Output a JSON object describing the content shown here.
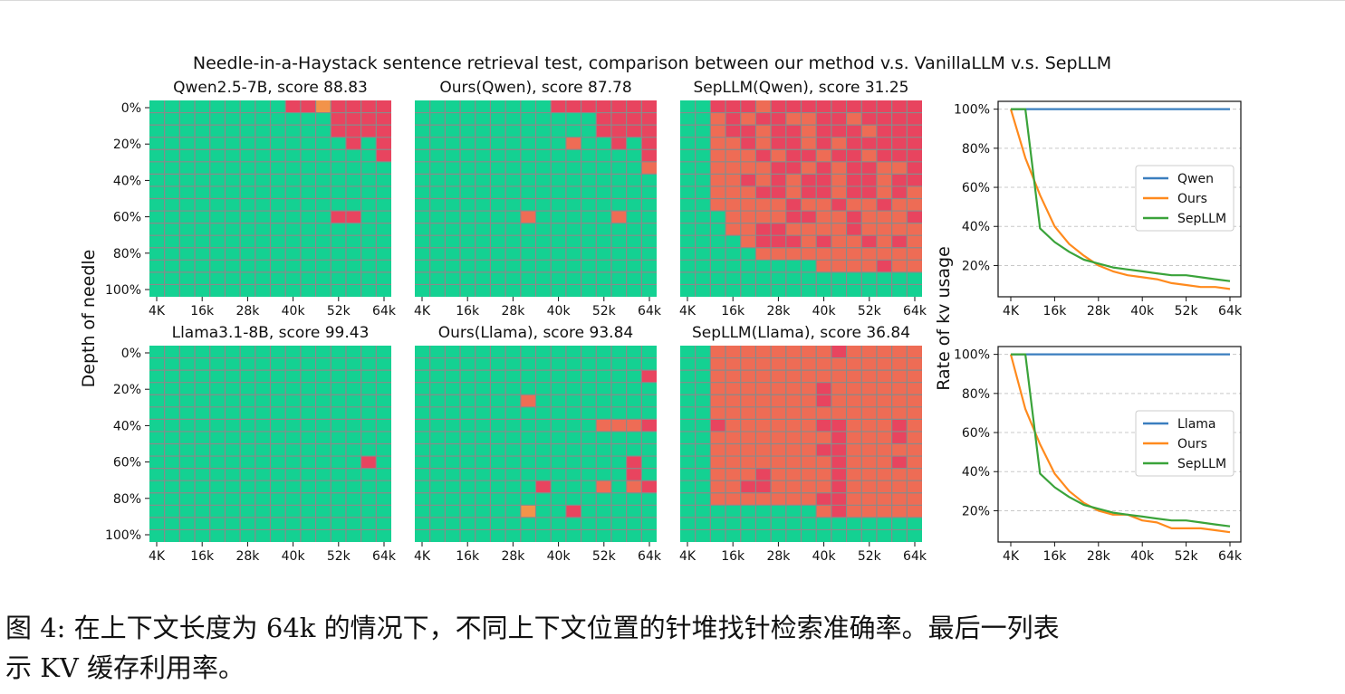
{
  "figure": {
    "suptitle": "Needle-in-a-Haystack sentence retrieval test, comparison between our method v.s. VanillaLLM v.s. SepLLM",
    "ylabel_left": "Depth of needle",
    "ylabel_right": "Rate of kv usage"
  },
  "caption": {
    "line1": "图 4: 在上下文长度为 64k 的情况下，不同上下文位置的针堆找针检索准确率。最后一列表",
    "line2": "示 KV 缓存利用率。"
  },
  "colors": {
    "green": "#14d192",
    "red": "#e8445f",
    "salmon": "#ee6c55",
    "orange": "#f2934a",
    "grid_line": "#8a8a8a",
    "line_base": "#3a7ebf",
    "line_ours": "#ff8a1d",
    "line_sepllm": "#3aa33a"
  },
  "chart_data": [
    {
      "type": "heatmap",
      "title": "Qwen2.5-7B, score 88.83",
      "x_ticklabels": [
        "4K",
        "16k",
        "28k",
        "40k",
        "52k",
        "64k"
      ],
      "y_ticklabels": [
        "0%",
        "20%",
        "40%",
        "60%",
        "80%",
        "100%"
      ],
      "legend": {
        "G": "green",
        "R": "red",
        "S": "salmon",
        "O": "orange"
      },
      "grid": [
        "GGGGGGGGGRRORRRR",
        "GGGGGGGGGGGGRRRR",
        "GGGGGGGGGGGGRRRR",
        "GGGGGGGGGGGGGRGR",
        "GGGGGGGGGGGGGGGR",
        "GGGGGGGGGGGGGGGG",
        "GGGGGGGGGGGGGGGG",
        "GGGGGGGGGGGGGGGG",
        "GGGGGGGGGGGGGGGG",
        "GGGGGGGGGGGGRRGG",
        "GGGGGGGGGGGGGGGG",
        "GGGGGGGGGGGGGGGG",
        "GGGGGGGGGGGGGGGG",
        "GGGGGGGGGGGGGGGG",
        "GGGGGGGGGGGGGGGG",
        "GGGGGGGGGGGGGGGG"
      ]
    },
    {
      "type": "heatmap",
      "title": "Ours(Qwen), score 87.78",
      "x_ticklabels": [
        "4K",
        "16k",
        "28k",
        "40k",
        "52k",
        "64k"
      ],
      "y_ticklabels": [],
      "grid": [
        "GGGGGGGGGRRRRRRR",
        "GGGGGGGGGGGGRRRR",
        "GGGGGGGGGGGGRRRR",
        "GGGGGGGGGGSGGRGR",
        "GGGGGGGGGGGGGGGR",
        "GGGGGGGGGGGGGGGS",
        "GGGGGGGGGGGGGGGG",
        "GGGGGGGGGGGGGGGG",
        "GGGGGGGGGGGGGGGG",
        "GGGGGGGSGGGGGSGG",
        "GGGGGGGGGGGGGGGG",
        "GGGGGGGGGGGGGGGG",
        "GGGGGGGGGGGGGGGG",
        "GGGGGGGGGGGGGGGG",
        "GGGGGGGGGGGGGGGG",
        "GGGGGGGGGGGGGGGG"
      ]
    },
    {
      "type": "heatmap",
      "title": "SepLLM(Qwen), score 31.25",
      "x_ticklabels": [
        "4K",
        "16k",
        "28k",
        "40k",
        "52k",
        "64k"
      ],
      "y_ticklabels": [],
      "grid": [
        "GGRRRSRRRRRRRRRR",
        "GGSRSRRSSRRSRRRR",
        "GGSRRSRRSRRRSRRR",
        "GGSSRSRRSRSRRRRR",
        "GGSSSRSRRSRRSRRR",
        "GGSSSSRRSRSRRSSR",
        "GGSSRSRSRRSRRSRR",
        "GGSSSRRSRRSRRSRS",
        "GGSSSSSRSSRSSRSS",
        "GGGSSSSRRSSRSSSR",
        "GGGSSRRSSSSRSSSS",
        "GGGGSRRRSRSSRSRS",
        "GGGGGSSSSSSSSSSS",
        "GGGGGGGGGSSSSRSS",
        "GGGGGGGGGGGGGGGG",
        "GGGGGGGGGGGGGGGG"
      ]
    },
    {
      "type": "heatmap",
      "title": "Llama3.1-8B, score 99.43",
      "x_ticklabels": [
        "4K",
        "16k",
        "28k",
        "40k",
        "52k",
        "64k"
      ],
      "y_ticklabels": [
        "0%",
        "20%",
        "40%",
        "60%",
        "80%",
        "100%"
      ],
      "grid": [
        "GGGGGGGGGGGGGGGG",
        "GGGGGGGGGGGGGGGG",
        "GGGGGGGGGGGGGGGG",
        "GGGGGGGGGGGGGGGG",
        "GGGGGGGGGGGGGGGG",
        "GGGGGGGGGGGGGGGG",
        "GGGGGGGGGGGGGGGG",
        "GGGGGGGGGGGGGGGG",
        "GGGGGGGGGGGGGGGG",
        "GGGGGGGGGGGGGGRG",
        "GGGGGGGGGGGGGGGG",
        "GGGGGGGGGGGGGGGG",
        "GGGGGGGGGGGGGGGG",
        "GGGGGGGGGGGGGGGG",
        "GGGGGGGGGGGGGGGG",
        "GGGGGGGGGGGGGGGG"
      ]
    },
    {
      "type": "heatmap",
      "title": "Ours(Llama), score 93.84",
      "x_ticklabels": [
        "4K",
        "16k",
        "28k",
        "40k",
        "52k",
        "64k"
      ],
      "y_ticklabels": [],
      "grid": [
        "GGGGGGGGGGGGGGGG",
        "GGGGGGGGGGGGGGGG",
        "GGGGGGGGGGGGGGGR",
        "GGGGGGGGGGGGGGGG",
        "GGGGGGGSGGGGGGGG",
        "GGGGGGGGGGGGGGGG",
        "GGGGGGGGGGGGSSSR",
        "GGGGGGGGGGGGGGGG",
        "GGGGGGGGGGGGGGGG",
        "GGGGGGGGGGGGGGRG",
        "GGGGGGGGGGGGGGRG",
        "GGGGGGGGRGGGSGSR",
        "GGGGGGGGGGGGGGGG",
        "GGGGGGGOGGRGGGGG",
        "GGGGGGGGGGGGGGGG",
        "GGGGGGGGGGGGGGGG"
      ]
    },
    {
      "type": "heatmap",
      "title": "SepLLM(Llama), score 36.84",
      "x_ticklabels": [
        "4K",
        "16k",
        "28k",
        "40k",
        "52k",
        "64k"
      ],
      "y_ticklabels": [],
      "grid": [
        "GGSSSSSSSSRSSSSS",
        "GGSSSSSSSSSSSSSS",
        "GGSSSSSSSSSSSSSS",
        "GGSSSSSSSRSSSSSS",
        "GGSSSSSSSRSSSSSS",
        "GGSSSSSSSSSSSSSS",
        "GGRSSSSSSRRSSSRS",
        "GGSSSSSSSSRSSSRS",
        "GGSSSSSSSRRSSSSS",
        "GGSSSSSSSSRSSSRS",
        "GGSSSRSSSSRSSSSS",
        "GGSSRRSSSSRSSSSS",
        "GGSSSSSSSRRSSSSS",
        "GGGGGGGGGSRSSSSS",
        "GGGGGGGGGGGGGGGG",
        "GGGGGGGGGGGGGGGG"
      ]
    },
    {
      "type": "line",
      "x": [
        4,
        8,
        12,
        16,
        20,
        24,
        28,
        32,
        36,
        40,
        44,
        48,
        52,
        56,
        60,
        64
      ],
      "x_ticklabels": [
        "4K",
        "16k",
        "28k",
        "40k",
        "52k",
        "64k"
      ],
      "y_ticklabels": [
        "20%",
        "40%",
        "60%",
        "80%",
        "100%"
      ],
      "ylim": [
        4,
        104
      ],
      "grid": "horizontal dashed",
      "legend_position": "center-right",
      "series": [
        {
          "name": "Qwen",
          "color": "#3a7ebf",
          "values": [
            100,
            100,
            100,
            100,
            100,
            100,
            100,
            100,
            100,
            100,
            100,
            100,
            100,
            100,
            100,
            100
          ]
        },
        {
          "name": "Ours",
          "color": "#ff8a1d",
          "values": [
            100,
            75,
            56,
            40,
            31,
            25,
            20,
            17,
            15,
            14,
            13,
            11,
            10,
            9,
            9,
            8
          ]
        },
        {
          "name": "SepLLM",
          "color": "#3aa33a",
          "values": [
            100,
            100,
            39,
            32,
            27,
            23,
            21,
            19,
            18,
            17,
            16,
            15,
            15,
            14,
            13,
            12
          ]
        }
      ]
    },
    {
      "type": "line",
      "x": [
        4,
        8,
        12,
        16,
        20,
        24,
        28,
        32,
        36,
        40,
        44,
        48,
        52,
        56,
        60,
        64
      ],
      "x_ticklabels": [
        "4K",
        "16k",
        "28k",
        "40k",
        "52k",
        "64k"
      ],
      "y_ticklabels": [
        "20%",
        "40%",
        "60%",
        "80%",
        "100%"
      ],
      "ylim": [
        4,
        104
      ],
      "grid": "horizontal dashed",
      "legend_position": "center-right",
      "series": [
        {
          "name": "Llama",
          "color": "#3a7ebf",
          "values": [
            100,
            100,
            100,
            100,
            100,
            100,
            100,
            100,
            100,
            100,
            100,
            100,
            100,
            100,
            100,
            100
          ]
        },
        {
          "name": "Ours",
          "color": "#ff8a1d",
          "values": [
            100,
            72,
            54,
            39,
            30,
            24,
            20,
            18,
            18,
            15,
            14,
            11,
            11,
            11,
            10,
            9
          ]
        },
        {
          "name": "SepLLM",
          "color": "#3aa33a",
          "values": [
            100,
            100,
            39,
            32,
            27,
            23,
            21,
            19,
            18,
            17,
            16,
            15,
            15,
            14,
            13,
            12
          ]
        }
      ]
    }
  ]
}
